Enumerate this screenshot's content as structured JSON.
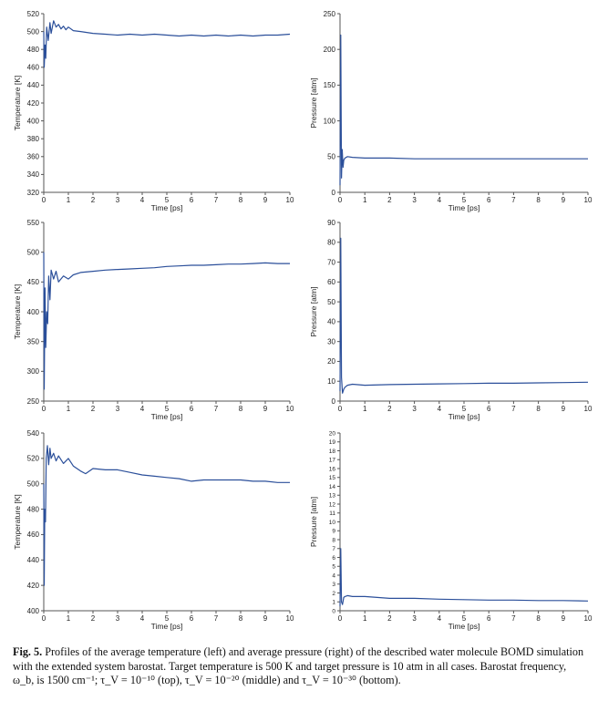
{
  "caption": {
    "label": "Fig. 5.",
    "text": "Profiles of the average temperature (left) and average pressure (right) of the described water molecule BOMD simulation with the extended system barostat. Target temperature is 500 K and target pressure is 10 atm in all cases. Barostat frequency, ω_b, is 1500 cm⁻¹; τ_V = 10⁻¹⁰ (top), τ_V = 10⁻²⁰ (middle) and τ_V = 10⁻³⁰ (bottom)."
  },
  "colors": {
    "line": "#2b4f9a",
    "axis": "#555555"
  },
  "chart_data": [
    {
      "id": "temp-top",
      "type": "line",
      "xlabel": "Time [ps]",
      "ylabel": "Temperature [K]",
      "xlim": [
        0,
        10
      ],
      "ylim": [
        320,
        520
      ],
      "xticks": [
        0,
        1,
        2,
        3,
        4,
        5,
        6,
        7,
        8,
        9,
        10
      ],
      "yticks": [
        320,
        340,
        360,
        380,
        400,
        420,
        440,
        460,
        480,
        500,
        520
      ],
      "series": [
        {
          "x": [
            0,
            0.02,
            0.05,
            0.08,
            0.12,
            0.18,
            0.25,
            0.3,
            0.4,
            0.5,
            0.6,
            0.7,
            0.8,
            0.9,
            1,
            1.2,
            1.5,
            2,
            2.5,
            3,
            3.5,
            4,
            4.5,
            5,
            5.5,
            6,
            6.5,
            7,
            7.5,
            8,
            8.5,
            9,
            9.5,
            10
          ],
          "y": [
            500,
            460,
            485,
            470,
            505,
            490,
            510,
            498,
            512,
            505,
            508,
            503,
            506,
            502,
            505,
            501,
            500,
            498,
            497,
            496,
            497,
            496,
            497,
            496,
            495,
            496,
            495,
            496,
            495,
            496,
            495,
            496,
            496,
            497
          ]
        }
      ]
    },
    {
      "id": "press-top",
      "type": "line",
      "xlabel": "Time [ps]",
      "ylabel": "Pressure [atm]",
      "xlim": [
        0,
        10
      ],
      "ylim": [
        0,
        250
      ],
      "xticks": [
        0,
        1,
        2,
        3,
        4,
        5,
        6,
        7,
        8,
        9,
        10
      ],
      "yticks": [
        0,
        50,
        100,
        150,
        200,
        250
      ],
      "series": [
        {
          "x": [
            0,
            0.03,
            0.06,
            0.09,
            0.12,
            0.15,
            0.2,
            0.3,
            0.5,
            1,
            2,
            3,
            4,
            5,
            6,
            7,
            8,
            9,
            10
          ],
          "y": [
            10,
            220,
            20,
            60,
            35,
            45,
            48,
            50,
            49,
            48,
            48,
            47,
            47,
            47,
            47,
            47,
            47,
            47,
            47
          ]
        }
      ]
    },
    {
      "id": "temp-mid",
      "type": "line",
      "xlabel": "Time [ps]",
      "ylabel": "Temperature [K]",
      "xlim": [
        0,
        10
      ],
      "ylim": [
        250,
        550
      ],
      "xticks": [
        0,
        1,
        2,
        3,
        4,
        5,
        6,
        7,
        8,
        9,
        10
      ],
      "yticks": [
        250,
        300,
        350,
        400,
        450,
        500,
        550
      ],
      "series": [
        {
          "x": [
            0,
            0.02,
            0.05,
            0.08,
            0.12,
            0.16,
            0.2,
            0.25,
            0.3,
            0.4,
            0.5,
            0.6,
            0.8,
            1,
            1.2,
            1.5,
            2,
            2.5,
            3,
            3.5,
            4,
            4.5,
            5,
            5.5,
            6,
            6.5,
            7,
            7.5,
            8,
            8.5,
            9,
            9.5,
            10
          ],
          "y": [
            500,
            270,
            440,
            340,
            400,
            380,
            460,
            420,
            470,
            455,
            468,
            450,
            460,
            455,
            462,
            466,
            468,
            470,
            471,
            472,
            473,
            474,
            476,
            477,
            478,
            478,
            479,
            480,
            480,
            481,
            482,
            481,
            481
          ]
        }
      ]
    },
    {
      "id": "press-mid",
      "type": "line",
      "xlabel": "Time [ps]",
      "ylabel": "Pressure [atm]",
      "xlim": [
        0,
        10
      ],
      "ylim": [
        0,
        90
      ],
      "xticks": [
        0,
        1,
        2,
        3,
        4,
        5,
        6,
        7,
        8,
        9,
        10
      ],
      "yticks": [
        0,
        10,
        20,
        30,
        40,
        50,
        60,
        70,
        80,
        90
      ],
      "series": [
        {
          "x": [
            0,
            0.03,
            0.06,
            0.1,
            0.15,
            0.2,
            0.3,
            0.5,
            1,
            2,
            3,
            4,
            5,
            6,
            7,
            8,
            9,
            10
          ],
          "y": [
            5,
            82,
            12,
            4,
            6,
            7,
            8,
            8.5,
            8,
            8.3,
            8.5,
            8.7,
            8.8,
            9,
            9,
            9.2,
            9.3,
            9.5
          ]
        }
      ]
    },
    {
      "id": "temp-bot",
      "type": "line",
      "xlabel": "Time [ps]",
      "ylabel": "Temperature [K]",
      "xlim": [
        0,
        10
      ],
      "ylim": [
        400,
        540
      ],
      "xticks": [
        0,
        1,
        2,
        3,
        4,
        5,
        6,
        7,
        8,
        9,
        10
      ],
      "yticks": [
        400,
        420,
        440,
        460,
        480,
        500,
        520,
        540
      ],
      "series": [
        {
          "x": [
            0,
            0.02,
            0.04,
            0.07,
            0.1,
            0.15,
            0.2,
            0.25,
            0.3,
            0.4,
            0.5,
            0.6,
            0.8,
            1,
            1.2,
            1.5,
            1.7,
            2,
            2.5,
            3,
            3.5,
            4,
            4.5,
            5,
            5.5,
            6,
            6.5,
            7,
            7.5,
            8,
            8.5,
            9,
            9.5,
            10
          ],
          "y": [
            500,
            420,
            480,
            470,
            520,
            530,
            515,
            528,
            520,
            524,
            518,
            522,
            516,
            520,
            514,
            510,
            508,
            512,
            511,
            511,
            509,
            507,
            506,
            505,
            504,
            502,
            503,
            503,
            503,
            503,
            502,
            502,
            501,
            501
          ]
        }
      ]
    },
    {
      "id": "press-bot",
      "type": "line",
      "xlabel": "Time [ps]",
      "ylabel": "Pressure [atm]",
      "xlim": [
        0,
        10
      ],
      "ylim": [
        0,
        20
      ],
      "xticks": [
        0,
        1,
        2,
        3,
        4,
        5,
        6,
        7,
        8,
        9,
        10
      ],
      "yticks": [
        0,
        1,
        2,
        3,
        4,
        5,
        6,
        7,
        8,
        9,
        10,
        11,
        12,
        13,
        14,
        15,
        16,
        17,
        18,
        19,
        20
      ],
      "series": [
        {
          "x": [
            0,
            0.03,
            0.06,
            0.1,
            0.15,
            0.2,
            0.3,
            0.5,
            1,
            1.5,
            2,
            3,
            4,
            5,
            6,
            7,
            8,
            9,
            10
          ],
          "y": [
            0.5,
            7,
            1,
            0.7,
            1.5,
            1.6,
            1.7,
            1.6,
            1.6,
            1.5,
            1.4,
            1.4,
            1.3,
            1.25,
            1.2,
            1.2,
            1.15,
            1.15,
            1.1
          ]
        }
      ]
    }
  ]
}
